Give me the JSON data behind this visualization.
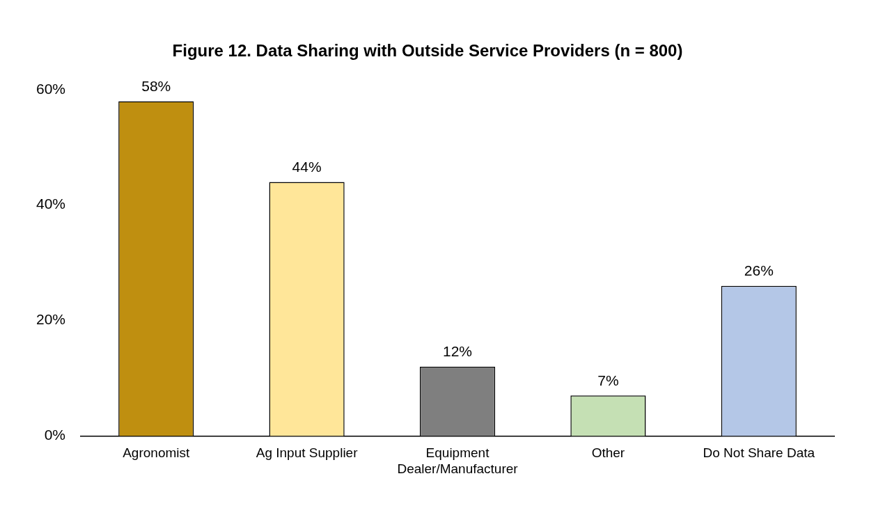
{
  "chart_data": {
    "type": "bar",
    "title": "Figure 12. Data Sharing with Outside Service Providers (n = 800)",
    "categories": [
      "Agronomist",
      "Ag Input Supplier",
      "Equipment\nDealer/Manufacturer",
      "Other",
      "Do Not Share Data"
    ],
    "values": [
      58,
      44,
      12,
      7,
      26
    ],
    "colors": [
      "#bf8f10",
      "#ffe699",
      "#7f7f7f",
      "#c5e0b4",
      "#b4c7e7"
    ],
    "value_labels": [
      "58%",
      "44%",
      "12%",
      "7%",
      "26%"
    ],
    "ylim": [
      0,
      60
    ],
    "yticks": [
      {
        "value": 0,
        "label": "0%"
      },
      {
        "value": 20,
        "label": "20%"
      },
      {
        "value": 40,
        "label": "40%"
      },
      {
        "value": 60,
        "label": "60%"
      }
    ],
    "grid": false,
    "legend": false
  }
}
